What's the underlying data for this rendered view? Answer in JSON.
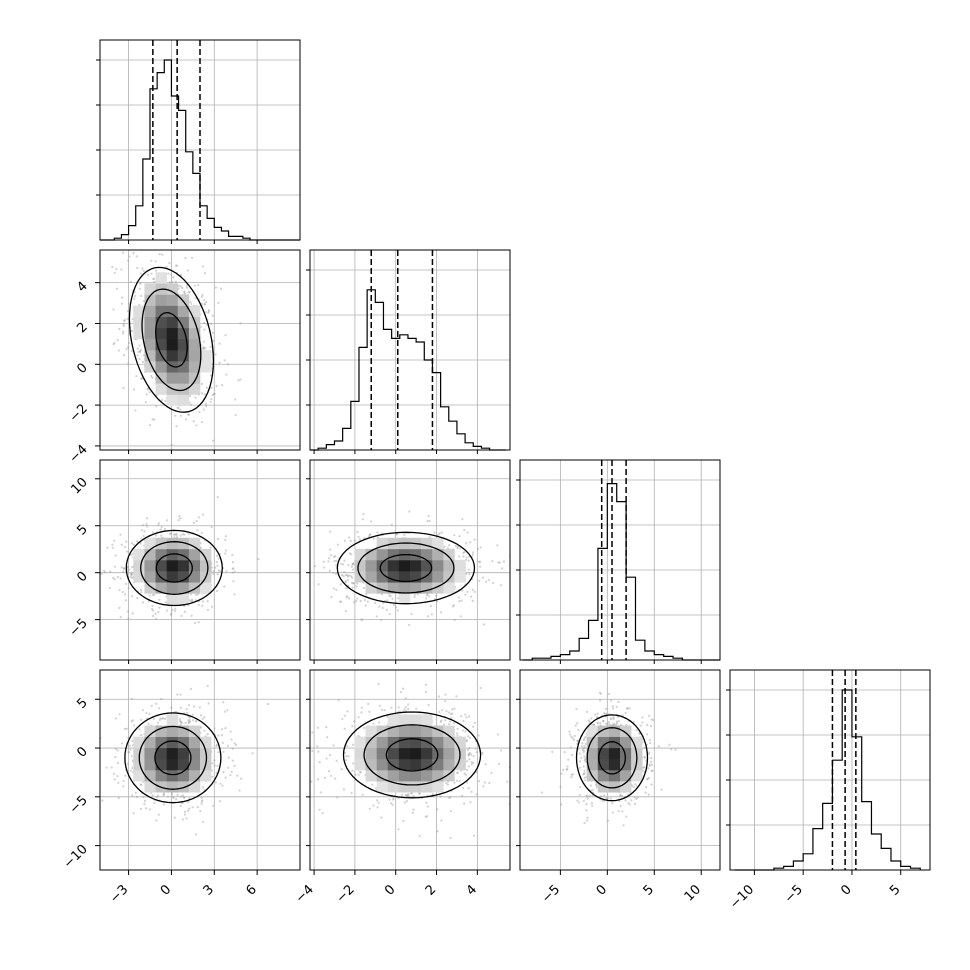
{
  "colors": {
    "frame": "#000000",
    "grid": "#b0b0b0",
    "hist_line": "#000000",
    "quantile_line": "#000000",
    "scatter_points": "#9a9a9a",
    "density_fill_max": "#000000",
    "contour_line": "#000000",
    "background": "#ffffff"
  },
  "chart_data": {
    "type": "corner",
    "n_params": 4,
    "grid": true,
    "axis_labels": [
      "",
      "",
      "",
      ""
    ],
    "ranges": [
      [
        -5.0,
        9.0
      ],
      [
        -4.2,
        5.6
      ],
      [
        -9.3,
        12.0
      ],
      [
        -12.5,
        8.0
      ]
    ],
    "ticks": [
      [
        -3,
        0,
        3,
        6
      ],
      [
        -4,
        -2,
        0,
        2,
        4
      ],
      [
        -5,
        0,
        5,
        10
      ],
      [
        -10,
        -5,
        0,
        5
      ]
    ],
    "tick_labels": [
      [
        "−3",
        "0",
        "3",
        "6"
      ],
      [
        "−4",
        "−2",
        "0",
        "2",
        "4"
      ],
      [
        "−5",
        "0",
        "5",
        "10"
      ],
      [
        "−10",
        "−5",
        "0",
        "5"
      ]
    ],
    "histograms": [
      {
        "param": 0,
        "bin_edges": [
          -5.0,
          -4.5,
          -4.0,
          -3.5,
          -3.0,
          -2.5,
          -2.0,
          -1.5,
          -1.0,
          -0.5,
          0.0,
          0.5,
          1.0,
          1.5,
          2.0,
          2.5,
          3.0,
          3.5,
          4.0,
          4.5,
          5.0,
          5.5,
          6.0,
          6.5,
          7.0,
          7.5,
          8.0,
          8.5,
          9.0
        ],
        "counts": [
          0.0,
          0.0,
          0.01,
          0.03,
          0.08,
          0.19,
          0.45,
          0.84,
          0.93,
          1.0,
          0.8,
          0.72,
          0.49,
          0.37,
          0.19,
          0.12,
          0.07,
          0.05,
          0.02,
          0.02,
          0.01,
          0.0,
          0.0,
          0.0,
          0.0,
          0.0,
          0.0,
          0.0
        ],
        "quantiles": [
          -1.3,
          0.4,
          2.0
        ]
      },
      {
        "param": 1,
        "bin_edges": [
          -4.2,
          -3.8,
          -3.4,
          -3.0,
          -2.6,
          -2.2,
          -1.8,
          -1.4,
          -1.0,
          -0.6,
          -0.2,
          0.2,
          0.6,
          1.0,
          1.4,
          1.8,
          2.2,
          2.6,
          3.0,
          3.4,
          3.8,
          4.2,
          4.6,
          5.0,
          5.4
        ],
        "counts": [
          0.0,
          0.01,
          0.03,
          0.05,
          0.12,
          0.27,
          0.57,
          0.89,
          0.82,
          0.67,
          0.62,
          0.64,
          0.62,
          0.6,
          0.5,
          0.43,
          0.24,
          0.16,
          0.09,
          0.04,
          0.02,
          0.01,
          0.0,
          0.0
        ],
        "quantiles": [
          -1.2,
          0.1,
          1.8
        ]
      },
      {
        "param": 2,
        "bin_edges": [
          -9.0,
          -8.0,
          -7.0,
          -6.0,
          -5.0,
          -4.0,
          -3.0,
          -2.0,
          -1.0,
          0.0,
          1.0,
          2.0,
          3.0,
          4.0,
          5.0,
          6.0,
          7.0,
          8.0,
          9.0,
          10.0,
          11.0,
          12.0
        ],
        "counts": [
          0.0,
          0.01,
          0.01,
          0.02,
          0.03,
          0.05,
          0.12,
          0.22,
          0.62,
          0.98,
          0.88,
          0.46,
          0.11,
          0.05,
          0.03,
          0.02,
          0.01,
          0.0,
          0.0,
          0.0,
          0.0
        ],
        "quantiles": [
          -0.6,
          0.5,
          2.0
        ]
      },
      {
        "param": 3,
        "bin_edges": [
          -12.0,
          -11.0,
          -10.0,
          -9.0,
          -8.0,
          -7.0,
          -6.0,
          -5.0,
          -4.0,
          -3.0,
          -2.0,
          -1.0,
          0.0,
          1.0,
          2.0,
          3.0,
          4.0,
          5.0,
          6.0,
          7.0
        ],
        "counts": [
          0.0,
          0.0,
          0.0,
          0.0,
          0.01,
          0.02,
          0.05,
          0.09,
          0.23,
          0.37,
          0.61,
          1.0,
          0.74,
          0.38,
          0.2,
          0.12,
          0.05,
          0.02,
          0.01
        ],
        "quantiles": [
          -2.0,
          -0.7,
          0.4
        ]
      }
    ],
    "joint": [
      {
        "x": 0,
        "y": 1,
        "mode": [
          0.0,
          1.2
        ],
        "spread": [
          1.4,
          1.7
        ],
        "tilt": -0.5
      },
      {
        "x": 0,
        "y": 2,
        "mode": [
          0.2,
          0.5
        ],
        "spread": [
          1.6,
          2.0
        ],
        "tilt": 0.0
      },
      {
        "x": 1,
        "y": 2,
        "mode": [
          0.5,
          0.5
        ],
        "spread": [
          1.6,
          1.9
        ],
        "tilt": 0.0
      },
      {
        "x": 0,
        "y": 3,
        "mode": [
          0.1,
          -1.0
        ],
        "spread": [
          1.6,
          2.3
        ],
        "tilt": 0.0
      },
      {
        "x": 1,
        "y": 3,
        "mode": [
          0.8,
          -0.7
        ],
        "spread": [
          1.6,
          2.2
        ],
        "tilt": 0.0
      },
      {
        "x": 2,
        "y": 3,
        "mode": [
          0.5,
          -1.0
        ],
        "spread": [
          1.8,
          2.2
        ],
        "tilt": 0.0
      }
    ]
  }
}
